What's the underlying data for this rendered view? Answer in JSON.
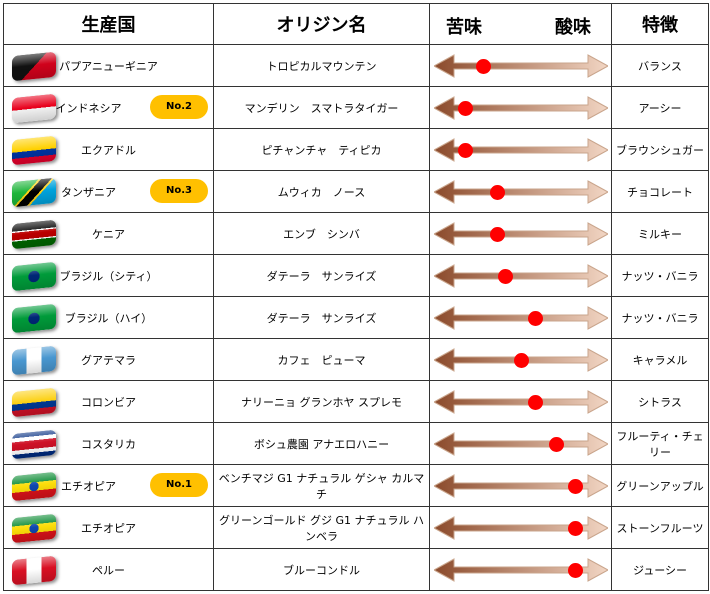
{
  "header": {
    "country": "生産国",
    "origin": "オリジン名",
    "bitter": "苦味",
    "acidity": "酸味",
    "feature": "特徴"
  },
  "rows": [
    {
      "country": "パプアニューギニア",
      "origin": "トロピカルマウンテン",
      "feature": "バランス",
      "badge": "",
      "taste_level": 0.28,
      "flag": "papua-new-guinea"
    },
    {
      "country": "インドネシア",
      "origin": "マンデリン　スマトラタイガー",
      "feature": "アーシー",
      "badge": "No.2",
      "taste_level": 0.18,
      "flag": "indonesia"
    },
    {
      "country": "エクアドル",
      "origin": "ピチャンチャ　ティピカ",
      "feature": "ブラウンシュガー",
      "badge": "",
      "taste_level": 0.18,
      "flag": "ecuador"
    },
    {
      "country": "タンザニア",
      "origin": "ムウィカ　ノース",
      "feature": "チョコレート",
      "badge": "No.3",
      "taste_level": 0.36,
      "flag": "tanzania"
    },
    {
      "country": "ケニア",
      "origin": "エンブ　シンバ",
      "feature": "ミルキー",
      "badge": "",
      "taste_level": 0.36,
      "flag": "kenya"
    },
    {
      "country": "ブラジル（シティ）",
      "origin": "ダテーラ　サンライズ",
      "feature": "ナッツ・バニラ",
      "badge": "",
      "taste_level": 0.41,
      "flag": "brazil"
    },
    {
      "country": "ブラジル（ハイ）",
      "origin": "ダテーラ　サンライズ",
      "feature": "ナッツ・バニラ",
      "badge": "",
      "taste_level": 0.58,
      "flag": "brazil"
    },
    {
      "country": "グアテマラ",
      "origin": "カフェ　ピューマ",
      "feature": "キャラメル",
      "badge": "",
      "taste_level": 0.5,
      "flag": "guatemala"
    },
    {
      "country": "コロンビア",
      "origin": "ナリーニョ グランホヤ スプレモ",
      "feature": "シトラス",
      "badge": "",
      "taste_level": 0.58,
      "flag": "colombia"
    },
    {
      "country": "コスタリカ",
      "origin": "ボシュ農園 アナエロハニー",
      "feature": "フルーティ・チェリー",
      "badge": "",
      "taste_level": 0.7,
      "flag": "costa-rica"
    },
    {
      "country": "エチオピア",
      "origin": "ベンチマジ G1 ナチュラル ゲシャ カルマチ",
      "feature": "グリーンアップル",
      "badge": "No.1",
      "taste_level": 0.81,
      "flag": "ethiopia"
    },
    {
      "country": "エチオピア",
      "origin": "グリーンゴールド グジ G1 ナチュラル ハンベラ",
      "feature": "ストーンフルーツ",
      "badge": "",
      "taste_level": 0.81,
      "flag": "ethiopia"
    },
    {
      "country": "ペルー",
      "origin": "ブルーコンドル",
      "feature": "ジューシー",
      "badge": "",
      "taste_level": 0.81,
      "flag": "peru"
    }
  ],
  "colors": {
    "marker": "#ff0000",
    "badge": "#ffc000",
    "arrow_dark": "#8b4a2b",
    "arrow_light": "#f2d6c4"
  }
}
